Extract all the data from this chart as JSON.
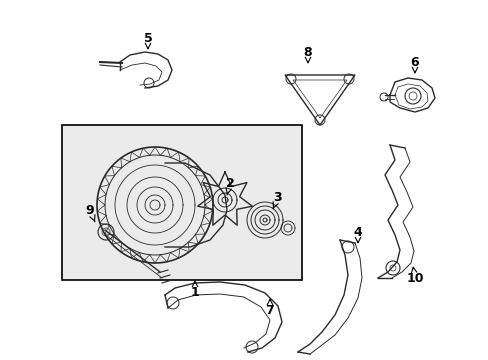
{
  "background_color": "#ffffff",
  "line_color": "#2a2a2a",
  "box_fill": "#ebebeb",
  "box_border": "#000000",
  "figsize": [
    4.89,
    3.6
  ],
  "dpi": 100
}
